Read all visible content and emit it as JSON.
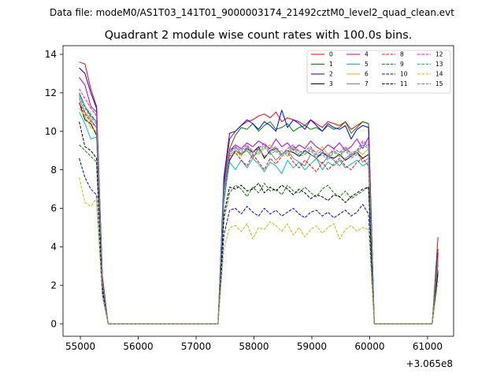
{
  "figure": {
    "suptitle": "Data file: modeM0/AS1T03_141T01_9000003174_21492cztM0_level2_quad_clean.evt"
  },
  "chart_data": {
    "type": "line",
    "title": "Quadrant 2 module wise count rates with 100.0s bins.",
    "xlabel": "",
    "ylabel": "",
    "x_offset_label": "+3.065e8",
    "xlim": [
      54700,
      61450
    ],
    "ylim": [
      -0.65,
      14.45
    ],
    "grid": false,
    "legend_placement": "top-right",
    "legend_columns": 4,
    "x_ticks": [
      55000,
      56000,
      57000,
      58000,
      59000,
      60000,
      61000
    ],
    "y_ticks": [
      0,
      2,
      4,
      6,
      8,
      10,
      12,
      14
    ],
    "x": {
      "seg1": [
        54980,
        55080,
        55180,
        55280,
        55380,
        55480
      ],
      "seg2": [
        55480,
        57380
      ],
      "seg3": [
        57380,
        57480,
        57580,
        57680,
        57780,
        57880,
        57980,
        58080,
        58180,
        58280,
        58380,
        58480,
        58580,
        58680,
        58780,
        58880,
        58980,
        59080,
        59180,
        59280,
        59380,
        59480,
        59580,
        59680,
        59780,
        59880,
        59980,
        60080
      ],
      "seg4": [
        60080,
        61080,
        61180
      ]
    },
    "series": [
      {
        "name": "0",
        "color": "#ff0000",
        "dash": "solid",
        "seg1": [
          13.6,
          13.5,
          12.2,
          11.3,
          2.5,
          0
        ],
        "plateau": [
          7.4,
          9.6,
          10.0,
          10.3,
          10.5,
          10.6,
          10.8,
          10.9,
          10.7,
          11.0,
          10.5,
          10.7,
          10.6,
          10.5,
          10.3,
          10.6,
          10.4,
          10.2,
          10.5,
          10.4,
          10.3,
          10.5,
          10.1,
          10.3,
          10.5,
          10.4
        ],
        "end": 4.5
      },
      {
        "name": "1",
        "color": "#008000",
        "dash": "solid",
        "seg1": [
          12.0,
          11.3,
          10.8,
          10.5,
          2.2,
          0
        ],
        "plateau": [
          7.2,
          9.1,
          9.8,
          10.2,
          10.1,
          10.4,
          10.0,
          10.3,
          10.5,
          10.1,
          10.2,
          10.4,
          10.0,
          10.2,
          10.3,
          10.1,
          10.2,
          10.0,
          10.3,
          10.1,
          10.2,
          10.5,
          9.9,
          10.2,
          10.5,
          10.4
        ],
        "end": 3.9
      },
      {
        "name": "2",
        "color": "#0000ff",
        "dash": "solid",
        "seg1": [
          13.3,
          13.0,
          12.0,
          11.2,
          2.4,
          0
        ],
        "plateau": [
          7.6,
          9.9,
          10.0,
          10.3,
          10.6,
          10.4,
          10.1,
          10.5,
          10.3,
          10.0,
          11.1,
          10.2,
          10.6,
          10.4,
          10.1,
          10.6,
          10.3,
          10.0,
          10.4,
          10.2,
          10.1,
          10.3,
          9.6,
          10.1,
          10.3,
          10.2
        ],
        "end": 3.7
      },
      {
        "name": "3",
        "color": "#000000",
        "dash": "solid",
        "seg1": [
          11.5,
          10.6,
          10.4,
          9.8,
          2.1,
          0
        ],
        "plateau": [
          6.4,
          8.5,
          9.0,
          8.8,
          9.1,
          8.9,
          9.2,
          8.6,
          9.0,
          9.1,
          8.8,
          9.0,
          8.9,
          8.7,
          9.0,
          8.8,
          8.6,
          8.9,
          8.7,
          8.6,
          8.8,
          8.5,
          8.7,
          8.9,
          8.6,
          8.8
        ],
        "end": 3.3
      },
      {
        "name": "4",
        "color": "#bf00bf",
        "dash": "solid",
        "seg1": [
          12.8,
          12.4,
          11.3,
          11.0,
          2.3,
          0
        ],
        "plateau": [
          7.0,
          9.0,
          9.3,
          9.1,
          9.4,
          9.2,
          9.5,
          9.3,
          9.1,
          9.6,
          9.2,
          9.4,
          9.0,
          9.3,
          9.1,
          9.5,
          9.2,
          9.0,
          9.3,
          9.1,
          9.4,
          9.0,
          9.2,
          9.6,
          9.1,
          9.7
        ],
        "end": 3.6
      },
      {
        "name": "5",
        "color": "#00bfbf",
        "dash": "solid",
        "seg1": [
          11.0,
          10.4,
          9.6,
          9.7,
          2.0,
          0
        ],
        "plateau": [
          6.5,
          8.4,
          8.0,
          8.5,
          8.1,
          8.6,
          8.3,
          7.9,
          8.4,
          8.2,
          7.8,
          8.5,
          8.1,
          8.4,
          8.0,
          8.3,
          8.6,
          8.0,
          8.4,
          8.2,
          8.5,
          8.1,
          8.3,
          8.5,
          8.2,
          8.4
        ],
        "end": 3.2
      },
      {
        "name": "6",
        "color": "#bfbf00",
        "dash": "solid",
        "seg1": [
          11.2,
          10.8,
          10.2,
          10.0,
          2.1,
          0
        ],
        "plateau": [
          6.8,
          8.8,
          9.0,
          8.7,
          9.2,
          9.0,
          8.8,
          9.1,
          9.3,
          8.9,
          9.0,
          8.7,
          9.2,
          9.0,
          8.8,
          9.1,
          8.9,
          9.2,
          8.8,
          9.0,
          8.7,
          9.1,
          8.9,
          9.0,
          8.8,
          9.1
        ],
        "end": 3.4
      },
      {
        "name": "7",
        "color": "#808080",
        "dash": "solid",
        "seg1": [
          11.7,
          11.0,
          10.6,
          10.2,
          2.2,
          0
        ],
        "plateau": [
          6.9,
          8.9,
          9.2,
          8.8,
          9.0,
          8.6,
          9.1,
          8.7,
          8.9,
          8.5,
          8.8,
          9.0,
          8.6,
          8.4,
          8.2,
          8.8,
          8.6,
          8.3,
          8.7,
          8.5,
          8.2,
          8.6,
          8.8,
          8.9,
          8.4,
          8.6
        ],
        "end": 3.3
      },
      {
        "name": "8",
        "color": "#ff0000",
        "dash": "dashed",
        "seg1": [
          11.5,
          10.9,
          10.5,
          10.2,
          2.1,
          0
        ],
        "plateau": [
          6.8,
          8.7,
          8.9,
          8.5,
          8.2,
          8.8,
          8.4,
          8.0,
          8.6,
          8.3,
          8.7,
          8.9,
          8.4,
          8.1,
          8.5,
          8.2,
          7.9,
          8.4,
          8.0,
          8.3,
          8.6,
          8.2,
          8.0,
          8.4,
          8.6,
          8.2
        ],
        "end": 3.1
      },
      {
        "name": "9",
        "color": "#008000",
        "dash": "dashed",
        "seg1": [
          9.3,
          9.0,
          8.7,
          8.4,
          1.8,
          0
        ],
        "plateau": [
          5.4,
          6.8,
          7.2,
          7.0,
          6.6,
          7.1,
          6.8,
          7.3,
          6.9,
          7.0,
          6.7,
          7.2,
          6.9,
          6.8,
          7.1,
          6.8,
          6.6,
          7.0,
          7.2,
          6.8,
          6.6,
          6.9,
          6.5,
          6.7,
          6.9,
          7.1
        ],
        "end": 2.8
      },
      {
        "name": "10",
        "color": "#0000ff",
        "dash": "dashed",
        "seg1": [
          8.6,
          7.6,
          7.0,
          6.7,
          1.6,
          0
        ],
        "plateau": [
          4.6,
          5.9,
          6.0,
          5.7,
          6.1,
          5.8,
          5.6,
          6.0,
          5.7,
          5.9,
          5.6,
          5.8,
          6.0,
          5.7,
          5.5,
          5.8,
          5.9,
          5.6,
          5.8,
          5.5,
          5.7,
          5.9,
          5.6,
          5.8,
          6.2,
          5.7
        ],
        "end": 2.6
      },
      {
        "name": "11",
        "color": "#000000",
        "dash": "dashed",
        "seg1": [
          10.5,
          9.2,
          9.0,
          8.6,
          1.9,
          0
        ],
        "plateau": [
          5.7,
          7.1,
          7.0,
          7.2,
          6.9,
          7.0,
          7.3,
          6.8,
          7.1,
          6.9,
          7.2,
          7.0,
          6.7,
          7.0,
          6.8,
          6.5,
          6.7,
          6.6,
          6.4,
          6.7,
          6.6,
          6.3,
          6.6,
          6.8,
          7.0,
          7.1
        ],
        "end": 2.7
      },
      {
        "name": "12",
        "color": "#ff00ff",
        "dash": "dashed",
        "seg1": [
          12.2,
          11.7,
          11.2,
          10.8,
          2.3,
          0
        ],
        "plateau": [
          7.1,
          9.0,
          9.2,
          9.0,
          9.3,
          8.9,
          9.1,
          9.4,
          9.0,
          9.2,
          8.8,
          9.1,
          9.3,
          8.9,
          9.0,
          9.2,
          8.8,
          9.0,
          8.7,
          9.1,
          8.9,
          9.2,
          8.8,
          9.0,
          9.5,
          9.3
        ],
        "end": 3.5
      },
      {
        "name": "13",
        "color": "#00bfbf",
        "dash": "dashed",
        "seg1": [
          11.9,
          11.3,
          10.9,
          10.5,
          2.2,
          0
        ],
        "plateau": [
          7.0,
          8.9,
          9.1,
          8.9,
          9.2,
          8.8,
          9.0,
          9.3,
          8.9,
          9.1,
          8.8,
          9.0,
          9.2,
          8.8,
          8.9,
          9.1,
          8.7,
          8.9,
          8.6,
          9.0,
          8.8,
          9.1,
          8.7,
          8.9,
          9.4,
          9.2
        ],
        "end": 3.4
      },
      {
        "name": "14",
        "color": "#bfbf00",
        "dash": "dashed",
        "seg1": [
          7.6,
          6.3,
          6.1,
          6.5,
          1.4,
          0
        ],
        "plateau": [
          3.9,
          5.0,
          5.1,
          4.8,
          5.2,
          4.4,
          5.0,
          4.9,
          5.3,
          5.1,
          4.8,
          5.2,
          4.6,
          5.0,
          4.5,
          4.9,
          5.1,
          4.7,
          5.0,
          5.2,
          4.4,
          4.9,
          5.1,
          4.8,
          5.0,
          4.9
        ],
        "end": 2.2
      },
      {
        "name": "15",
        "color": "#808080",
        "dash": "dashed",
        "seg1": [
          11.8,
          11.2,
          10.7,
          10.4,
          2.2,
          0
        ],
        "plateau": [
          6.9,
          8.8,
          9.0,
          8.8,
          9.1,
          8.7,
          8.9,
          9.2,
          8.8,
          9.0,
          8.7,
          8.9,
          9.1,
          8.7,
          8.8,
          9.0,
          8.6,
          8.8,
          8.5,
          8.9,
          8.7,
          9.0,
          8.6,
          8.8,
          9.3,
          9.1
        ],
        "end": 3.3
      }
    ]
  }
}
